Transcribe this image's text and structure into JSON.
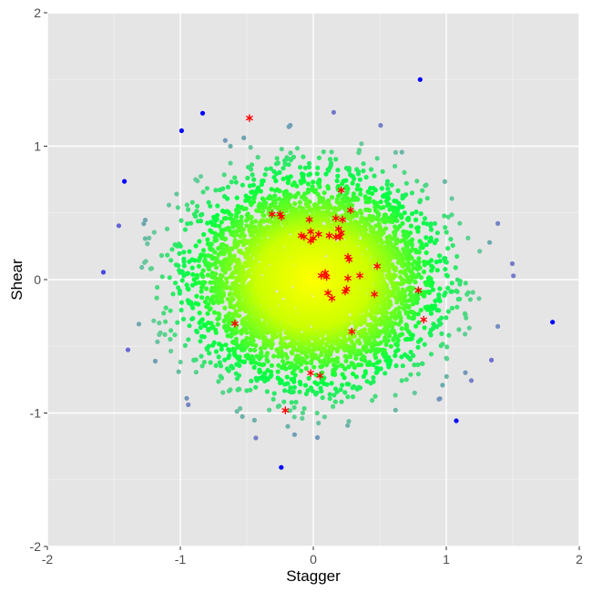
{
  "chart_data": {
    "type": "scatter",
    "title": "",
    "xlabel": "Stagger",
    "ylabel": "Shear",
    "xlim": [
      -2,
      2
    ],
    "ylim": [
      -2,
      2
    ],
    "x_ticks": [
      -2,
      -1,
      0,
      1,
      2
    ],
    "y_ticks": [
      -2,
      -1,
      0,
      1,
      2
    ],
    "x_tick_labels": [
      "-2",
      "-1",
      "0",
      "1",
      "2"
    ],
    "y_tick_labels": [
      "-2",
      "-1",
      "0",
      "1",
      "2"
    ],
    "grid": true,
    "panel_background": "#e5e5e5",
    "grid_color": "#ffffff",
    "legend": "none",
    "point_cloud": {
      "description_of_distribution": "bivariate normal around (0,0), color by distance from center",
      "center": [
        0,
        0
      ],
      "sd": [
        0.42,
        0.35
      ],
      "count": 6000,
      "color_gradient": [
        "#ffff00",
        "#ccff00",
        "#00ff40",
        "#66cc99",
        "#7777cc",
        "#0000ff"
      ]
    },
    "series": [
      {
        "marker": "asterisk",
        "color": "#ff0000",
        "points": [
          [
            -0.48,
            1.21
          ],
          [
            0.21,
            0.67
          ],
          [
            -0.31,
            0.49
          ],
          [
            -0.25,
            0.49
          ],
          [
            -0.24,
            0.47
          ],
          [
            0.28,
            0.52
          ],
          [
            -0.03,
            0.45
          ],
          [
            0.17,
            0.46
          ],
          [
            0.22,
            0.45
          ],
          [
            -0.09,
            0.33
          ],
          [
            -0.07,
            0.32
          ],
          [
            -0.02,
            0.36
          ],
          [
            0.04,
            0.34
          ],
          [
            0.12,
            0.33
          ],
          [
            0.19,
            0.38
          ],
          [
            0.17,
            0.32
          ],
          [
            0.21,
            0.35
          ],
          [
            0.2,
            0.32
          ],
          [
            -0.02,
            0.29
          ],
          [
            0.0,
            0.31
          ],
          [
            0.26,
            0.17
          ],
          [
            0.27,
            0.15
          ],
          [
            0.48,
            0.1
          ],
          [
            0.35,
            0.03
          ],
          [
            0.06,
            0.03
          ],
          [
            0.09,
            0.05
          ],
          [
            0.1,
            0.02
          ],
          [
            0.26,
            0.01
          ],
          [
            0.24,
            -0.09
          ],
          [
            0.25,
            -0.07
          ],
          [
            0.11,
            -0.1
          ],
          [
            0.14,
            -0.14
          ],
          [
            0.46,
            -0.11
          ],
          [
            0.79,
            -0.08
          ],
          [
            0.83,
            -0.3
          ],
          [
            -0.59,
            -0.33
          ],
          [
            0.29,
            -0.39
          ],
          [
            -0.02,
            -0.7
          ],
          [
            0.05,
            -0.72
          ],
          [
            -0.21,
            -0.98
          ]
        ]
      }
    ]
  }
}
